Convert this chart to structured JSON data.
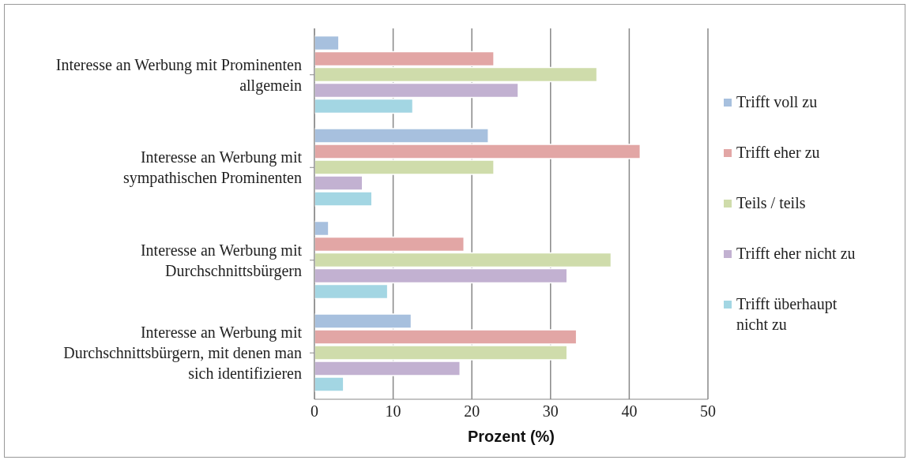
{
  "chart_data": {
    "type": "bar",
    "orientation": "horizontal",
    "xlabel": "Prozent (%)",
    "categories": [
      "Interesse an Werbung mit Prominenten allgemein",
      "Interesse an Werbung mit sympathischen Prominenten",
      "Interesse an Werbung mit Durchschnittsbürgern",
      "Interesse an Werbung mit Durchschnittsbürgern, mit denen man sich identifizieren"
    ],
    "series": [
      {
        "name": "Trifft voll zu",
        "color": "#a7c0de",
        "values": [
          3.1,
          22.1,
          1.8,
          12.3
        ]
      },
      {
        "name": "Trifft eher zu",
        "color": "#e2a6a5",
        "values": [
          22.8,
          41.4,
          19.0,
          33.3
        ]
      },
      {
        "name": "Teils / teils",
        "color": "#cfdcab",
        "values": [
          35.9,
          22.8,
          37.7,
          32.1
        ]
      },
      {
        "name": "Trifft eher nicht zu",
        "color": "#c2b1d1",
        "values": [
          25.9,
          6.1,
          32.1,
          18.5
        ]
      },
      {
        "name": "Trifft überhaupt nicht zu",
        "color": "#a3d6e3",
        "values": [
          12.5,
          7.3,
          9.3,
          3.7
        ]
      }
    ],
    "xlim": [
      0,
      50
    ],
    "xticks": [
      0,
      10,
      20,
      30,
      40,
      50
    ],
    "grid": "x",
    "legend": "right"
  }
}
